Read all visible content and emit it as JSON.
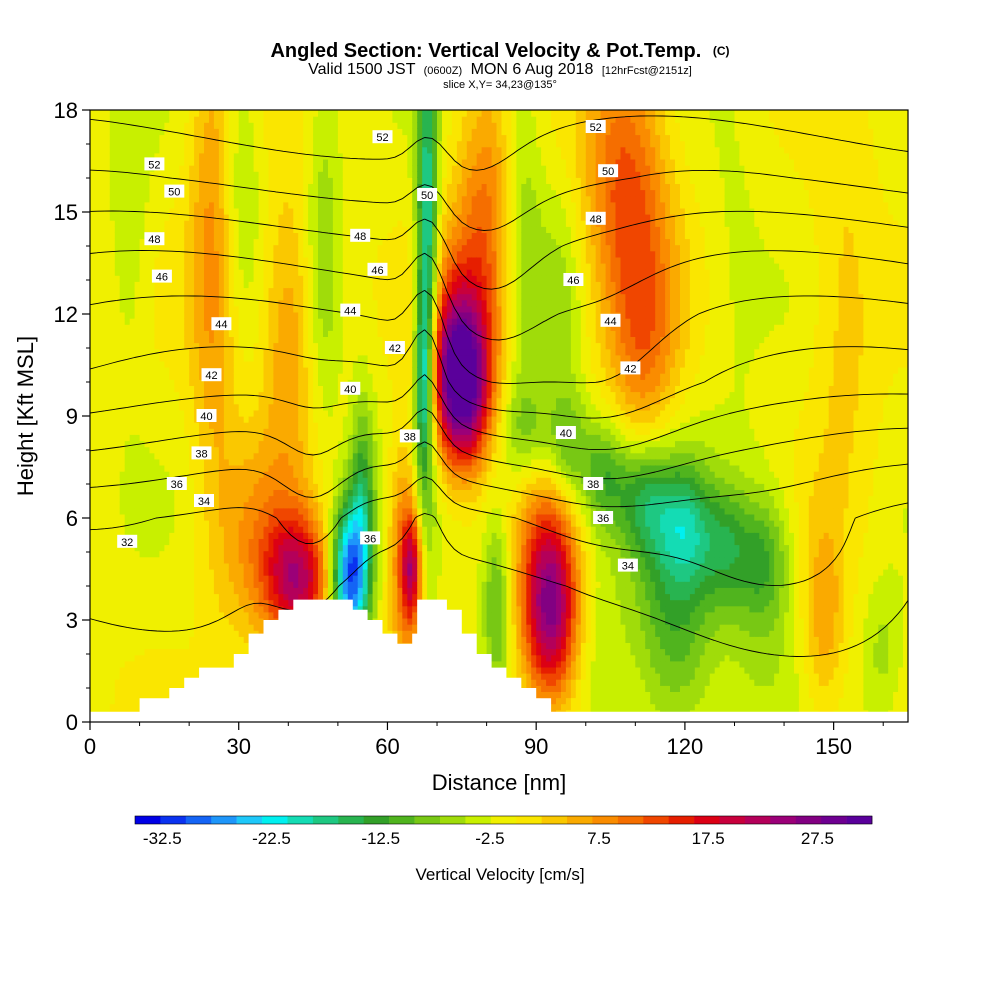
{
  "chart_data": {
    "type": "heatmap",
    "title": "Angled Section: Vertical Velocity & Pot.Temp.",
    "title_units": "(C)",
    "subtitle_parts": [
      "Valid 1500 JST",
      "(0600Z)",
      "MON 6 Aug 2018",
      "[12hrFcst@2151z]"
    ],
    "slice_label": "slice X,Y= 34,23@135°",
    "xlabel": "Distance [nm]",
    "ylabel": "Height [Kft MSL]",
    "xlim": [
      0,
      165
    ],
    "ylim": [
      0,
      18
    ],
    "xticks": [
      0,
      30,
      60,
      90,
      120,
      150
    ],
    "yticks": [
      0,
      3,
      6,
      9,
      12,
      15,
      18
    ],
    "grid": false,
    "colorbar": {
      "label": "Vertical Velocity [cm/s]",
      "tick_labels": [
        -32.5,
        -22.5,
        -12.5,
        -2.5,
        7.5,
        17.5,
        27.5
      ],
      "min": -35,
      "max": 32.5,
      "step": 2.5,
      "colors": [
        "#0000e6",
        "#0a32f0",
        "#1464f5",
        "#1e96fa",
        "#1ec8fa",
        "#00f0f0",
        "#14dcb4",
        "#1ec882",
        "#28b450",
        "#32a028",
        "#50b41e",
        "#78c814",
        "#a0dc0a",
        "#c8f000",
        "#f0f000",
        "#fae600",
        "#fac800",
        "#faaa00",
        "#fa8c00",
        "#f56e00",
        "#f04600",
        "#e61e00",
        "#dc0014",
        "#c8003c",
        "#b4005a",
        "#9b0078",
        "#820082",
        "#6e0091",
        "#5a009b"
      ]
    },
    "terrain_kft": [
      [
        0,
        0.3
      ],
      [
        10,
        0.3
      ],
      [
        10,
        0.7
      ],
      [
        16,
        0.7
      ],
      [
        16,
        1.0
      ],
      [
        19,
        1.0
      ],
      [
        19,
        1.3
      ],
      [
        22,
        1.3
      ],
      [
        22,
        1.6
      ],
      [
        29,
        1.6
      ],
      [
        29,
        2.0
      ],
      [
        32,
        2.0
      ],
      [
        32,
        2.6
      ],
      [
        35,
        2.6
      ],
      [
        35,
        3.0
      ],
      [
        38,
        3.0
      ],
      [
        38,
        3.3
      ],
      [
        41,
        3.3
      ],
      [
        41,
        3.6
      ],
      [
        53,
        3.6
      ],
      [
        53,
        3.3
      ],
      [
        56,
        3.3
      ],
      [
        56,
        3.0
      ],
      [
        59,
        3.0
      ],
      [
        59,
        2.6
      ],
      [
        62,
        2.6
      ],
      [
        62,
        2.3
      ],
      [
        65,
        2.3
      ],
      [
        65,
        2.6
      ],
      [
        66,
        2.6
      ],
      [
        66,
        3.6
      ],
      [
        72,
        3.6
      ],
      [
        72,
        3.3
      ],
      [
        75,
        3.3
      ],
      [
        75,
        2.6
      ],
      [
        78,
        2.6
      ],
      [
        78,
        2.0
      ],
      [
        81,
        2.0
      ],
      [
        81,
        1.6
      ],
      [
        84,
        1.6
      ],
      [
        84,
        1.3
      ],
      [
        87,
        1.3
      ],
      [
        87,
        1.0
      ],
      [
        90,
        1.0
      ],
      [
        90,
        0.7
      ],
      [
        93,
        0.7
      ],
      [
        93,
        0.3
      ],
      [
        165,
        0.3
      ]
    ],
    "velocity_features": [
      {
        "x": 42,
        "z": 4.2,
        "sx": 4.5,
        "sz": 1.3,
        "w": 22
      },
      {
        "x": 34,
        "z": 5.2,
        "sx": 6,
        "sz": 2.2,
        "w": 8
      },
      {
        "x": 52,
        "z": 4.3,
        "sx": 2.4,
        "sz": 1.5,
        "w": -30
      },
      {
        "x": 55,
        "z": 6.0,
        "sx": 1.8,
        "sz": 2.4,
        "w": -14
      },
      {
        "x": 63,
        "z": 5.0,
        "sx": 2.0,
        "sz": 2.2,
        "w": 12
      },
      {
        "x": 65,
        "z": 4.5,
        "sx": 1.4,
        "sz": 1.2,
        "w": 20
      },
      {
        "x": 68,
        "z": 13.5,
        "sx": 1.5,
        "sz": 4.5,
        "w": -22
      },
      {
        "x": 67,
        "z": 10.0,
        "sx": 1.1,
        "sz": 1.8,
        "w": -14
      },
      {
        "x": 75,
        "z": 9.8,
        "sx": 3.8,
        "sz": 1.6,
        "w": 30
      },
      {
        "x": 74,
        "z": 11.2,
        "sx": 4.5,
        "sz": 2.0,
        "w": 14
      },
      {
        "x": 80,
        "z": 14.5,
        "sx": 4.5,
        "sz": 3.0,
        "w": 12
      },
      {
        "x": 93,
        "z": 3.2,
        "sx": 3.8,
        "sz": 1.8,
        "w": 22
      },
      {
        "x": 92,
        "z": 5.0,
        "sx": 4.5,
        "sz": 3.0,
        "w": 10
      },
      {
        "x": 82,
        "z": 3.5,
        "sx": 2.0,
        "sz": 2.0,
        "w": -10
      },
      {
        "x": 103,
        "z": 2.5,
        "sx": 4.0,
        "sz": 2.5,
        "w": -3
      },
      {
        "x": 118,
        "z": 3.5,
        "sx": 6.0,
        "sz": 3.0,
        "w": -12
      },
      {
        "x": 135,
        "z": 4.0,
        "sx": 5.0,
        "sz": 2.5,
        "w": -6
      },
      {
        "x": 108,
        "z": 16.0,
        "sx": 6.0,
        "sz": 3.0,
        "w": 14
      },
      {
        "x": 112,
        "z": 11.0,
        "sx": 5.0,
        "sz": 2.5,
        "w": 10
      },
      {
        "x": 95,
        "z": 11.5,
        "sx": 3.0,
        "sz": 3.0,
        "w": -5
      },
      {
        "x": 87,
        "z": 15.0,
        "sx": 3.0,
        "sz": 4.0,
        "w": -7
      },
      {
        "x": 25,
        "z": 14.0,
        "sx": 3.5,
        "sz": 5.0,
        "w": 10
      },
      {
        "x": 40,
        "z": 11.5,
        "sx": 4.0,
        "sz": 3.0,
        "w": 9
      },
      {
        "x": 30,
        "z": 16.0,
        "sx": 3.0,
        "sz": 3.0,
        "w": -6
      },
      {
        "x": 47,
        "z": 14.0,
        "sx": 2.5,
        "sz": 4.0,
        "w": -6
      },
      {
        "x": 8,
        "z": 14.0,
        "sx": 3.0,
        "sz": 3.0,
        "w": -4
      },
      {
        "x": 148,
        "z": 3.0,
        "sx": 3.0,
        "sz": 2.0,
        "w": 8
      },
      {
        "x": 152,
        "z": 12.0,
        "sx": 5.0,
        "sz": 4.0,
        "w": 5
      },
      {
        "x": 160,
        "z": 2.0,
        "sx": 3.0,
        "sz": 1.5,
        "w": -5
      },
      {
        "x": 130,
        "z": 14.0,
        "sx": 4.0,
        "sz": 4.0,
        "w": -2
      }
    ],
    "downdraft_band": [
      {
        "x": 88,
        "z": 8.5,
        "w": -9
      },
      {
        "x": 96,
        "z": 8.0,
        "w": -10
      },
      {
        "x": 104,
        "z": 7.2,
        "w": -11
      },
      {
        "x": 112,
        "z": 6.5,
        "w": -11
      },
      {
        "x": 120,
        "z": 5.8,
        "w": -10
      },
      {
        "x": 128,
        "z": 5.2,
        "w": -9
      },
      {
        "x": 136,
        "z": 4.8,
        "w": -7
      }
    ],
    "theta_contours_C": [
      32,
      34,
      36,
      38,
      40,
      42,
      44,
      46,
      48,
      50,
      52
    ],
    "theta_profile": {
      "levels_kft": [
        0,
        4,
        6,
        7,
        8,
        9,
        10,
        12,
        14,
        16,
        18
      ],
      "theta_C": [
        30,
        31.8,
        33.5,
        35.5,
        37.5,
        39.5,
        41.5,
        44,
        47,
        50.5,
        53
      ]
    },
    "theta_perturbations": [
      {
        "x": 45,
        "z": 6.5,
        "sx": 6,
        "sz": 2.0,
        "d": 2.0
      },
      {
        "x": 68,
        "z": 11.0,
        "sx": 3,
        "sz": 4.0,
        "d": -2.5
      },
      {
        "x": 80,
        "z": 12.0,
        "sx": 8,
        "sz": 3.0,
        "d": 2.0
      },
      {
        "x": 102,
        "z": 9.0,
        "sx": 12,
        "sz": 3.0,
        "d": 1.8
      },
      {
        "x": 140,
        "z": 4.5,
        "sx": 15,
        "sz": 1.5,
        "d": 1.5
      }
    ],
    "contour_labels": [
      {
        "value": "52",
        "x": 13,
        "z": 16.4
      },
      {
        "value": "50",
        "x": 17,
        "z": 15.6
      },
      {
        "value": "48",
        "x": 13,
        "z": 14.2
      },
      {
        "value": "46",
        "x": 14.5,
        "z": 13.1
      },
      {
        "value": "44",
        "x": 26.5,
        "z": 11.7
      },
      {
        "value": "42",
        "x": 24.5,
        "z": 10.2
      },
      {
        "value": "40",
        "x": 23.5,
        "z": 9.0
      },
      {
        "value": "38",
        "x": 22.5,
        "z": 7.9
      },
      {
        "value": "36",
        "x": 17.5,
        "z": 7.0
      },
      {
        "value": "34",
        "x": 23,
        "z": 6.5
      },
      {
        "value": "32",
        "x": 7.5,
        "z": 5.3
      },
      {
        "value": "52",
        "x": 59,
        "z": 17.2
      },
      {
        "value": "50",
        "x": 68,
        "z": 15.5
      },
      {
        "value": "48",
        "x": 54.5,
        "z": 14.3
      },
      {
        "value": "46",
        "x": 58,
        "z": 13.3
      },
      {
        "value": "44",
        "x": 52.5,
        "z": 12.1
      },
      {
        "value": "42",
        "x": 61.5,
        "z": 11.0
      },
      {
        "value": "40",
        "x": 52.5,
        "z": 9.8
      },
      {
        "value": "38",
        "x": 64.5,
        "z": 8.4
      },
      {
        "value": "36",
        "x": 56.5,
        "z": 5.4
      },
      {
        "value": "52",
        "x": 102,
        "z": 17.5
      },
      {
        "value": "50",
        "x": 104.5,
        "z": 16.2
      },
      {
        "value": "48",
        "x": 102,
        "z": 14.8
      },
      {
        "value": "46",
        "x": 97.5,
        "z": 13.0
      },
      {
        "value": "44",
        "x": 105,
        "z": 11.8
      },
      {
        "value": "42",
        "x": 109,
        "z": 10.4
      },
      {
        "value": "40",
        "x": 96,
        "z": 8.5
      },
      {
        "value": "38",
        "x": 101.5,
        "z": 7.0
      },
      {
        "value": "36",
        "x": 103.5,
        "z": 6.0
      },
      {
        "value": "34",
        "x": 108.5,
        "z": 4.6
      }
    ]
  }
}
